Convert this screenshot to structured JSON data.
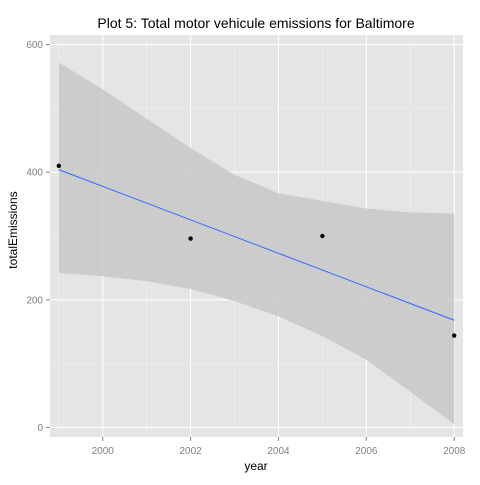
{
  "chart_data": {
    "type": "scatter",
    "title": "Plot 5: Total motor vehicule emissions for Baltimore",
    "xlabel": "year",
    "ylabel": "totalEmissions",
    "xlim": [
      1998.8,
      2008.2
    ],
    "ylim": [
      -15,
      615
    ],
    "x_ticks": [
      2000,
      2002,
      2004,
      2006,
      2008
    ],
    "y_ticks": [
      0,
      200,
      400,
      600
    ],
    "x_tick_labels": [
      "2000",
      "2002",
      "2004",
      "2006",
      "2008"
    ],
    "y_tick_labels": [
      "0",
      "200",
      "400",
      "600"
    ],
    "grid": true,
    "points": [
      {
        "x": 1999,
        "y": 410
      },
      {
        "x": 2002,
        "y": 296
      },
      {
        "x": 2005,
        "y": 300
      },
      {
        "x": 2008,
        "y": 144
      }
    ],
    "fit_line": {
      "x": [
        1999,
        2008
      ],
      "y": [
        404,
        168
      ]
    },
    "confidence_band": {
      "x": [
        1999,
        2000,
        2001,
        2002,
        2003,
        2004,
        2005,
        2006,
        2007,
        2008
      ],
      "upper": [
        572,
        530,
        484,
        438,
        396,
        367,
        355,
        343,
        337,
        335
      ],
      "lower": [
        242,
        237,
        229,
        217,
        198,
        174,
        143,
        106,
        56,
        5
      ]
    },
    "colors": {
      "panel": "#e5e5e5",
      "grid_major": "#ffffff",
      "grid_minor": "#f2f2f2",
      "band": "#c8c8c8",
      "line": "#3366ff",
      "point": "#000000",
      "text": "#000000",
      "tick_text": "#7f7f7f"
    }
  }
}
